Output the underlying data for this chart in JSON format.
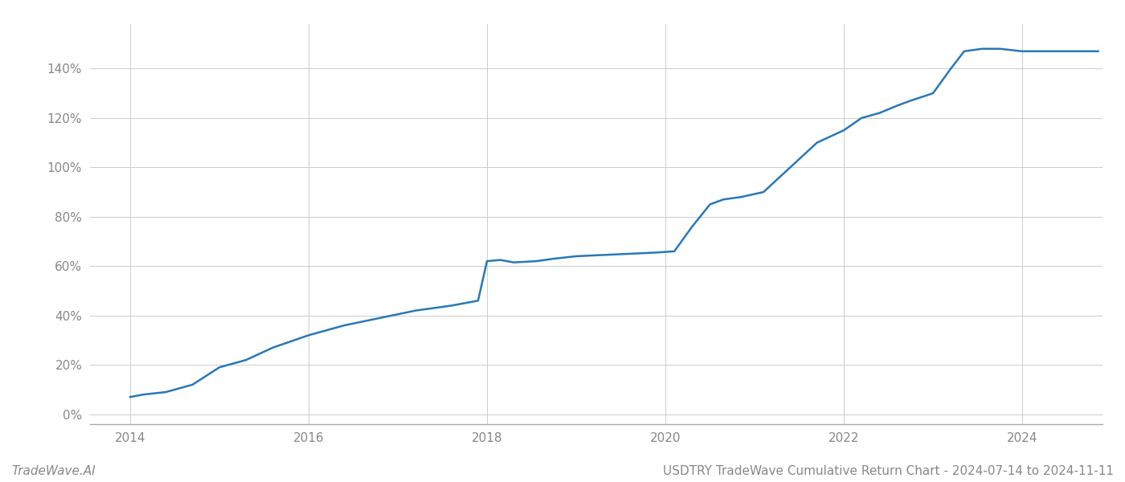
{
  "title_bottom": "USDTRY TradeWave Cumulative Return Chart - 2024-07-14 to 2024-11-11",
  "watermark": "TradeWave.AI",
  "line_color": "#2878b8",
  "line_width": 1.8,
  "background_color": "#ffffff",
  "grid_color": "#cccccc",
  "x_years": [
    2014,
    2016,
    2018,
    2020,
    2022,
    2024
  ],
  "xlim": [
    2013.55,
    2024.9
  ],
  "ylim": [
    -4,
    158
  ],
  "yticks": [
    0,
    20,
    40,
    60,
    80,
    100,
    120,
    140
  ],
  "data_points": {
    "x": [
      2014.0,
      2014.15,
      2014.4,
      2014.7,
      2015.0,
      2015.3,
      2015.6,
      2016.0,
      2016.4,
      2016.8,
      2017.2,
      2017.6,
      2017.9,
      2018.0,
      2018.15,
      2018.3,
      2018.55,
      2018.75,
      2019.0,
      2019.3,
      2019.6,
      2019.9,
      2020.1,
      2020.3,
      2020.5,
      2020.65,
      2020.85,
      2021.1,
      2021.4,
      2021.7,
      2022.0,
      2022.2,
      2022.4,
      2022.6,
      2022.75,
      2023.0,
      2023.2,
      2023.35,
      2023.55,
      2023.75,
      2024.0,
      2024.5,
      2024.85
    ],
    "y": [
      7,
      8,
      9,
      12,
      19,
      22,
      27,
      32,
      36,
      39,
      42,
      44,
      46,
      62,
      62.5,
      61.5,
      62,
      63,
      64,
      64.5,
      65,
      65.5,
      66,
      76,
      85,
      87,
      88,
      90,
      100,
      110,
      115,
      120,
      122,
      125,
      127,
      130,
      140,
      147,
      148,
      148,
      147,
      147,
      147
    ]
  }
}
